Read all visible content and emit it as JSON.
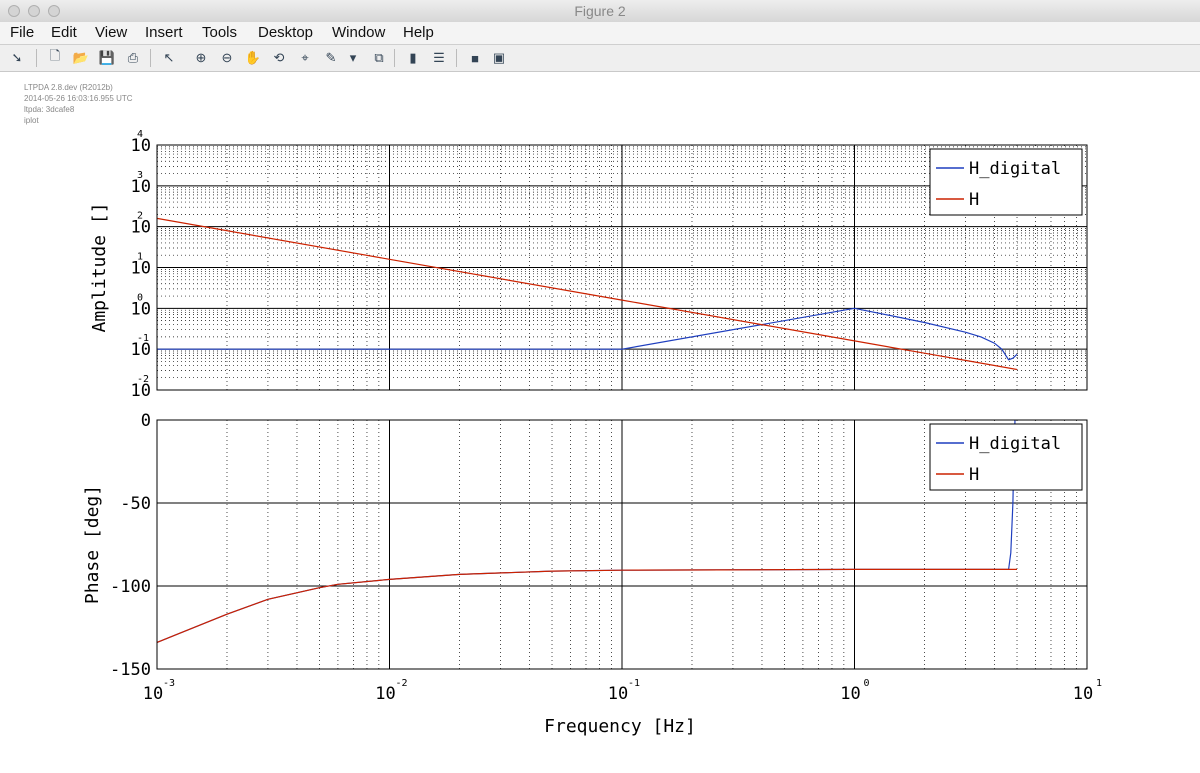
{
  "window": {
    "title": "Figure 2"
  },
  "menu": [
    "File",
    "Edit",
    "View",
    "Insert",
    "Tools",
    "Desktop",
    "Window",
    "Help"
  ],
  "toolbar": [
    {
      "name": "dock-arrow-icon",
      "glyph": "➘"
    },
    {
      "name": "new-figure-icon",
      "glyph": "🗋"
    },
    {
      "name": "open-file-icon",
      "glyph": "📂"
    },
    {
      "name": "save-icon",
      "glyph": "💾"
    },
    {
      "name": "print-icon",
      "glyph": "⎙"
    },
    {
      "name": "pointer-icon",
      "glyph": "↖"
    },
    {
      "name": "zoom-in-icon",
      "glyph": "⊕"
    },
    {
      "name": "zoom-out-icon",
      "glyph": "⊖"
    },
    {
      "name": "pan-icon",
      "glyph": "✋"
    },
    {
      "name": "rotate-icon",
      "glyph": "⟲"
    },
    {
      "name": "data-cursor-icon",
      "glyph": "⌖"
    },
    {
      "name": "brush-icon",
      "glyph": "✎"
    },
    {
      "name": "brush-dropdown-icon",
      "glyph": "▾"
    },
    {
      "name": "link-plot-icon",
      "glyph": "⧉"
    },
    {
      "name": "colorbar-icon",
      "glyph": "▮"
    },
    {
      "name": "legend-icon",
      "glyph": "☰"
    },
    {
      "name": "hide-tools-icon",
      "glyph": "■"
    },
    {
      "name": "show-tools-icon",
      "glyph": "▣"
    }
  ],
  "stamp": [
    "LTPDA 2.8.dev (R2012b)",
    "2014-05-26 16:03:16.955 UTC",
    "ltpda: 3dcafe8",
    "iplot"
  ],
  "colors": {
    "H_digital": "#1f3fbf",
    "H": "#cc2200",
    "grid": "#000000"
  },
  "chart_data": [
    {
      "type": "line",
      "title": "",
      "xlabel": "",
      "ylabel": "Amplitude  []",
      "xscale": "log",
      "yscale": "log",
      "xlim": [
        0.001,
        10
      ],
      "ylim": [
        0.01,
        10000
      ],
      "grid": "major and minor",
      "legend": "top-right",
      "yticklabels": [
        "10^4",
        "10^3",
        "10^2",
        "10^1",
        "10^0",
        "10^-1",
        "10^-2"
      ],
      "series": [
        {
          "name": "H_digital",
          "x": [
            0.001,
            0.01,
            0.1,
            1,
            2,
            3,
            3.5,
            4,
            4.3,
            4.6,
            4.8,
            5.0
          ],
          "y": [
            0.1,
            0.1,
            0.1,
            1.0,
            0.45,
            0.26,
            0.2,
            0.14,
            0.1,
            0.055,
            0.06,
            0.075
          ]
        },
        {
          "name": "H",
          "x": [
            0.001,
            0.01,
            0.1,
            1,
            2,
            3,
            4,
            5.0
          ],
          "y": [
            159,
            15.9,
            1.59,
            0.159,
            0.0795,
            0.053,
            0.0398,
            0.0318
          ]
        }
      ]
    },
    {
      "type": "line",
      "title": "",
      "xlabel": "Frequency  [Hz]",
      "ylabel": "Phase  [deg]",
      "xscale": "log",
      "xlim": [
        0.001,
        10
      ],
      "ylim": [
        -150,
        0
      ],
      "grid": "major and minor",
      "legend": "top-right",
      "xticklabels": [
        "10^-3",
        "10^-2",
        "10^-1",
        "10^0",
        "10^1"
      ],
      "yticklabels": [
        "0",
        "-50",
        "-100",
        "-150"
      ],
      "series": [
        {
          "name": "H_digital",
          "x": [
            0.001,
            0.002,
            0.003,
            0.005,
            0.006,
            0.01,
            0.02,
            0.05,
            0.1,
            1,
            4.6,
            4.7,
            4.8,
            4.85,
            4.9
          ],
          "y": [
            -134,
            -117,
            -108,
            -101,
            -99,
            -96,
            -93,
            -91,
            -90.5,
            -90,
            -90,
            -80,
            -50,
            -20,
            0
          ]
        },
        {
          "name": "H",
          "x": [
            0.001,
            0.002,
            0.003,
            0.005,
            0.006,
            0.01,
            0.02,
            0.05,
            0.1,
            1,
            5.0
          ],
          "y": [
            -134,
            -117,
            -108,
            -101,
            -99,
            -96,
            -93,
            -91,
            -90.5,
            -90,
            -90
          ]
        }
      ]
    }
  ]
}
